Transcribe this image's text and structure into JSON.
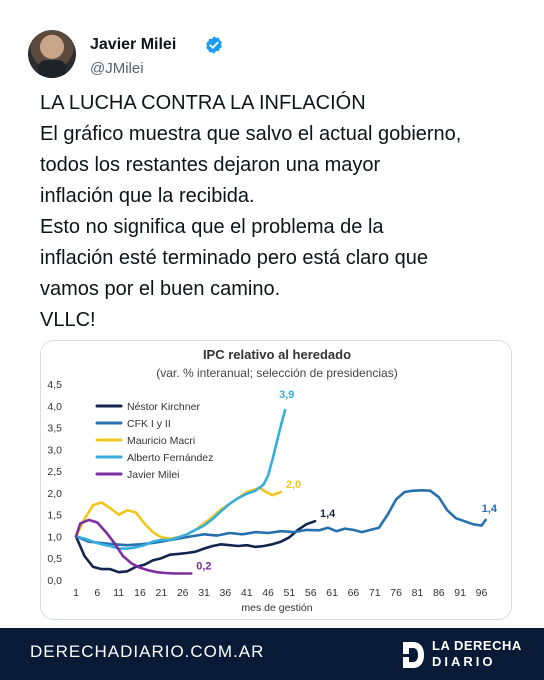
{
  "post": {
    "author": "Javier Milei",
    "handle": "@JMilei",
    "lines": [
      "LA LUCHA CONTRA LA INFLACIÓN",
      "El gráfico muestra que salvo el actual gobierno,",
      "todos los restantes dejaron una mayor",
      "inflación que la recibida.",
      "Esto no significa que el problema de la",
      "inflación esté terminado pero está claro que",
      "vamos por el buen camino.",
      "VLLC!"
    ]
  },
  "colors": {
    "verified": "#1d9bf0",
    "footer_bg": "#081a35"
  },
  "chart_data": {
    "type": "line",
    "title": "IPC relativo al heredado",
    "subtitle": "(var. % interanual; selección de presidencias)",
    "xlabel": "mes de gestión",
    "ylabel": "",
    "xlim": [
      1,
      98
    ],
    "ylim": [
      0,
      4.5
    ],
    "xticks": [
      1,
      6,
      11,
      16,
      21,
      26,
      31,
      36,
      41,
      46,
      51,
      56,
      61,
      66,
      71,
      76,
      81,
      86,
      91,
      96
    ],
    "yticks": [
      "0,0",
      "0,5",
      "1,0",
      "1,5",
      "2,0",
      "2,5",
      "3,0",
      "3,5",
      "4,0",
      "4,5"
    ],
    "legend_position": "top-left",
    "series": [
      {
        "name": "Néstor Kirchner",
        "color": "#13244f",
        "end_label": "1,4",
        "points": [
          [
            1,
            1.0
          ],
          [
            3,
            0.55
          ],
          [
            5,
            0.3
          ],
          [
            7,
            0.25
          ],
          [
            9,
            0.25
          ],
          [
            11,
            0.18
          ],
          [
            13,
            0.2
          ],
          [
            15,
            0.3
          ],
          [
            17,
            0.35
          ],
          [
            19,
            0.45
          ],
          [
            21,
            0.5
          ],
          [
            23,
            0.58
          ],
          [
            25,
            0.6
          ],
          [
            27,
            0.62
          ],
          [
            29,
            0.65
          ],
          [
            31,
            0.72
          ],
          [
            33,
            0.78
          ],
          [
            35,
            0.82
          ],
          [
            37,
            0.8
          ],
          [
            39,
            0.78
          ],
          [
            41,
            0.8
          ],
          [
            43,
            0.76
          ],
          [
            45,
            0.78
          ],
          [
            47,
            0.82
          ],
          [
            49,
            0.88
          ],
          [
            51,
            0.98
          ],
          [
            53,
            1.15
          ],
          [
            55,
            1.28
          ],
          [
            57,
            1.35
          ]
        ]
      },
      {
        "name": "CFK I y II",
        "color": "#2670ad",
        "end_label": "1,4",
        "points": [
          [
            1,
            1.0
          ],
          [
            4,
            0.88
          ],
          [
            7,
            0.85
          ],
          [
            10,
            0.82
          ],
          [
            13,
            0.8
          ],
          [
            16,
            0.82
          ],
          [
            19,
            0.85
          ],
          [
            22,
            0.9
          ],
          [
            25,
            0.95
          ],
          [
            28,
            1.0
          ],
          [
            31,
            1.05
          ],
          [
            34,
            1.02
          ],
          [
            37,
            1.08
          ],
          [
            40,
            1.05
          ],
          [
            43,
            1.1
          ],
          [
            46,
            1.08
          ],
          [
            49,
            1.12
          ],
          [
            52,
            1.1
          ],
          [
            55,
            1.15
          ],
          [
            58,
            1.14
          ],
          [
            60,
            1.2
          ],
          [
            62,
            1.12
          ],
          [
            64,
            1.18
          ],
          [
            66,
            1.15
          ],
          [
            68,
            1.1
          ],
          [
            70,
            1.15
          ],
          [
            72,
            1.2
          ],
          [
            74,
            1.5
          ],
          [
            76,
            1.85
          ],
          [
            78,
            2.02
          ],
          [
            80,
            2.05
          ],
          [
            82,
            2.06
          ],
          [
            84,
            2.05
          ],
          [
            86,
            1.9
          ],
          [
            88,
            1.6
          ],
          [
            90,
            1.42
          ],
          [
            92,
            1.35
          ],
          [
            94,
            1.28
          ],
          [
            96,
            1.25
          ],
          [
            97,
            1.38
          ]
        ]
      },
      {
        "name": "Mauricio Macri",
        "color": "#f2c61b",
        "end_label": "2,0",
        "points": [
          [
            1,
            1.0
          ],
          [
            3,
            1.4
          ],
          [
            5,
            1.72
          ],
          [
            7,
            1.78
          ],
          [
            9,
            1.65
          ],
          [
            11,
            1.5
          ],
          [
            13,
            1.6
          ],
          [
            15,
            1.55
          ],
          [
            17,
            1.3
          ],
          [
            19,
            1.1
          ],
          [
            21,
            0.98
          ],
          [
            23,
            0.95
          ],
          [
            25,
            0.98
          ],
          [
            27,
            1.05
          ],
          [
            29,
            1.15
          ],
          [
            31,
            1.3
          ],
          [
            33,
            1.45
          ],
          [
            35,
            1.62
          ],
          [
            37,
            1.75
          ],
          [
            39,
            1.88
          ],
          [
            41,
            2.02
          ],
          [
            43,
            2.08
          ],
          [
            44,
            2.12
          ],
          [
            45,
            2.05
          ],
          [
            47,
            1.95
          ],
          [
            49,
            2.02
          ]
        ]
      },
      {
        "name": "Alberto Fernández",
        "color": "#35aede",
        "end_label": "3,9",
        "points": [
          [
            1,
            1.0
          ],
          [
            3,
            0.95
          ],
          [
            5,
            0.88
          ],
          [
            7,
            0.82
          ],
          [
            9,
            0.78
          ],
          [
            11,
            0.72
          ],
          [
            13,
            0.72
          ],
          [
            15,
            0.75
          ],
          [
            17,
            0.8
          ],
          [
            19,
            0.88
          ],
          [
            21,
            0.92
          ],
          [
            23,
            0.92
          ],
          [
            25,
            0.98
          ],
          [
            27,
            1.05
          ],
          [
            29,
            1.15
          ],
          [
            31,
            1.25
          ],
          [
            33,
            1.4
          ],
          [
            35,
            1.58
          ],
          [
            37,
            1.75
          ],
          [
            39,
            1.88
          ],
          [
            41,
            1.98
          ],
          [
            43,
            2.05
          ],
          [
            44,
            2.12
          ],
          [
            45,
            2.2
          ],
          [
            46,
            2.4
          ],
          [
            47,
            2.75
          ],
          [
            48,
            3.15
          ],
          [
            49,
            3.55
          ],
          [
            50,
            3.9
          ]
        ]
      },
      {
        "name": "Javier Milei",
        "color": "#7b2fa0",
        "end_label": "0,2",
        "points": [
          [
            1,
            1.0
          ],
          [
            2,
            1.3
          ],
          [
            4,
            1.38
          ],
          [
            6,
            1.32
          ],
          [
            8,
            1.1
          ],
          [
            10,
            0.85
          ],
          [
            12,
            0.55
          ],
          [
            14,
            0.38
          ],
          [
            16,
            0.28
          ],
          [
            18,
            0.22
          ],
          [
            20,
            0.18
          ],
          [
            22,
            0.16
          ],
          [
            24,
            0.15
          ],
          [
            26,
            0.15
          ],
          [
            28,
            0.15
          ]
        ]
      }
    ]
  },
  "footer": {
    "site": "DERECHADIARIO.COM.AR",
    "brand_top": "LA DERECHA",
    "brand_bottom": "DIARIO"
  }
}
